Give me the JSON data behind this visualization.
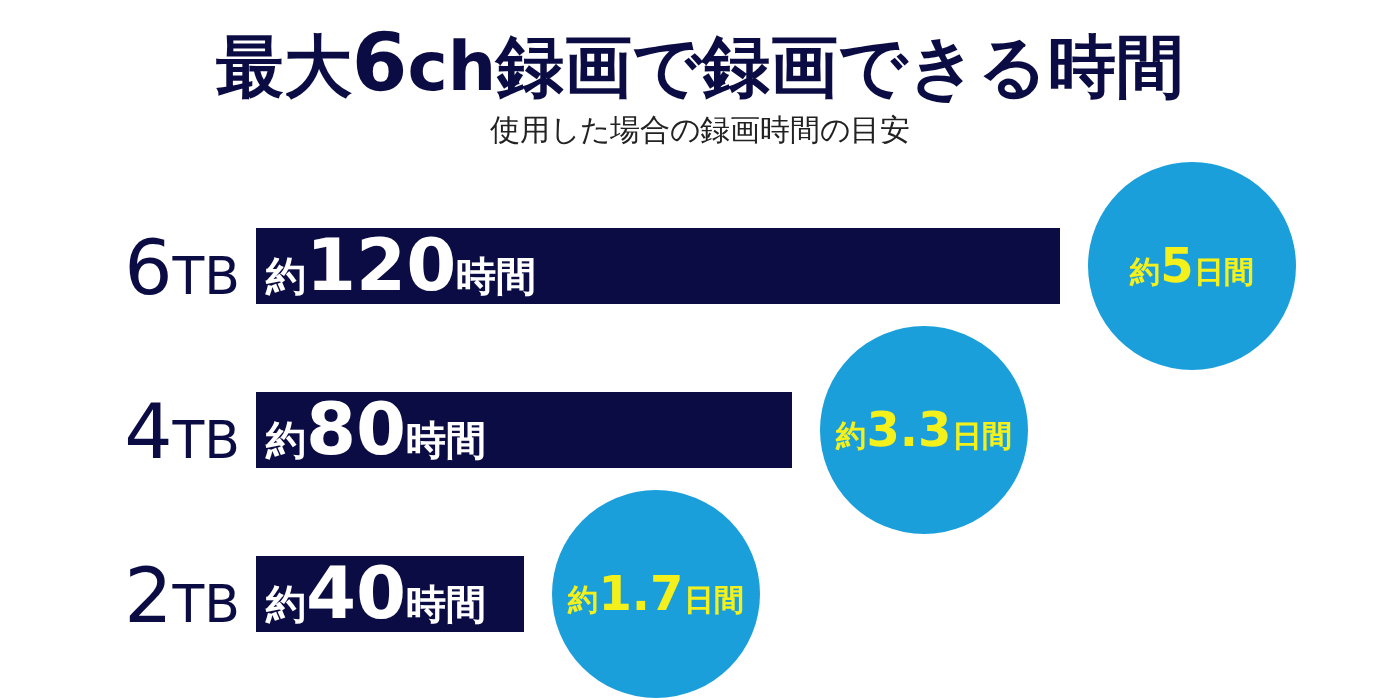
{
  "chart_data": {
    "type": "bar",
    "orientation": "horizontal",
    "title": "最大6ch録画で録画できる時間",
    "subtitle": "使用した場合の録画時間の目安",
    "categories": [
      "6TB",
      "4TB",
      "2TB"
    ],
    "values": [
      120,
      80,
      40
    ],
    "color": "#0b0c44",
    "xlim": [
      0,
      120
    ],
    "value_labels": [
      "約120時間",
      "約80時間",
      "約40時間"
    ],
    "annotations": [
      {
        "text": "約5日間",
        "x": 120,
        "y": "6TB"
      },
      {
        "text": "約3.3日間",
        "x": 80,
        "y": "4TB"
      },
      {
        "text": "約1.7日間",
        "x": 40,
        "y": "2TB"
      }
    ]
  }
}
